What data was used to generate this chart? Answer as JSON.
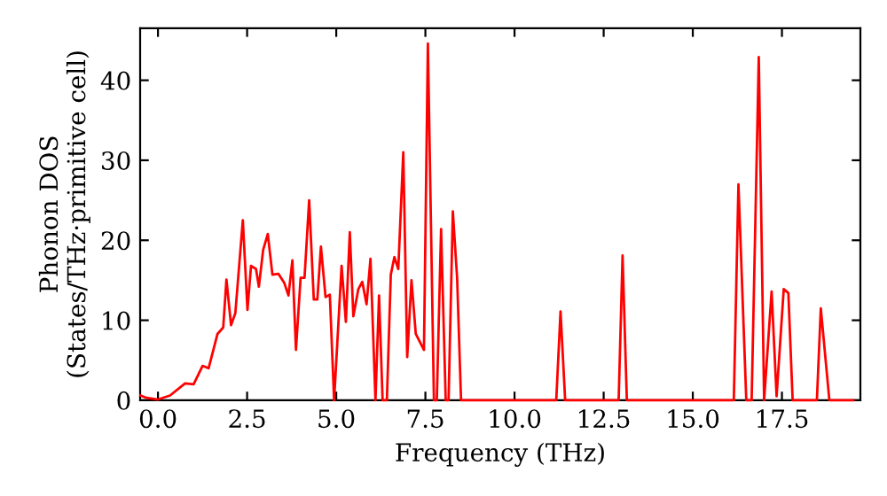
{
  "chart_data": {
    "type": "line",
    "xlabel": "Frequency (THz)",
    "ylabel": "Phonon DOS\n(States/THz·primitive cell)",
    "x": [
      -0.49,
      -0.32,
      0.0,
      0.34,
      0.76,
      1.0,
      1.25,
      1.42,
      1.67,
      1.83,
      1.92,
      2.05,
      2.17,
      2.38,
      2.51,
      2.61,
      2.75,
      2.83,
      2.95,
      3.08,
      3.21,
      3.38,
      3.54,
      3.66,
      3.77,
      3.87,
      4.0,
      4.11,
      4.24,
      4.37,
      4.47,
      4.57,
      4.7,
      4.82,
      4.94,
      5.15,
      5.27,
      5.38,
      5.48,
      5.62,
      5.73,
      5.85,
      5.96,
      6.1,
      6.2,
      6.3,
      6.42,
      6.53,
      6.63,
      6.74,
      6.88,
      6.99,
      7.11,
      7.23,
      7.46,
      7.57,
      7.74,
      7.82,
      7.94,
      8.07,
      8.15,
      8.27,
      8.39,
      8.5,
      11.17,
      11.29,
      11.42,
      12.92,
      13.03,
      13.15,
      16.15,
      16.28,
      16.5,
      16.65,
      16.85,
      17.0,
      17.21,
      17.35,
      17.55,
      17.68,
      17.8,
      18.48,
      18.59,
      18.83,
      19.5
    ],
    "series": [
      {
        "color": "#ff0000",
        "values": [
          0.6,
          0.3,
          0.1,
          0.6,
          2.1,
          2.0,
          4.3,
          4.0,
          8.3,
          9.1,
          15.1,
          9.4,
          10.9,
          22.5,
          11.3,
          16.8,
          16.4,
          14.2,
          18.8,
          20.8,
          15.7,
          15.8,
          14.7,
          13.1,
          17.5,
          6.3,
          15.3,
          15.3,
          25.0,
          12.6,
          12.6,
          19.2,
          12.9,
          13.2,
          0,
          16.8,
          9.8,
          21.0,
          10.5,
          13.9,
          14.8,
          12.0,
          17.7,
          0,
          13.1,
          0,
          0,
          15.7,
          17.9,
          16.4,
          31.0,
          5.4,
          15.0,
          8.3,
          6.3,
          44.6,
          0,
          0,
          21.4,
          0,
          0,
          23.6,
          15.3,
          0,
          0,
          11.1,
          0,
          0,
          18.1,
          0,
          0,
          27.0,
          0,
          0,
          42.9,
          0,
          13.6,
          0.5,
          13.9,
          13.4,
          0,
          0,
          11.5,
          0,
          0
        ]
      }
    ],
    "xlim": [
      -0.5,
      19.7
    ],
    "ylim": [
      0,
      46.5
    ],
    "xticks": [
      {
        "value": 0,
        "label": "0.0"
      },
      {
        "value": 2.5,
        "label": "2.5"
      },
      {
        "value": 5,
        "label": "5.0"
      },
      {
        "value": 7.5,
        "label": "7.5"
      },
      {
        "value": 10,
        "label": "10.0"
      },
      {
        "value": 12.5,
        "label": "12.5"
      },
      {
        "value": 15,
        "label": "15.0"
      },
      {
        "value": 17.5,
        "label": "17.5"
      }
    ],
    "yticks": [
      0,
      10,
      20,
      30,
      40
    ],
    "grid": false,
    "line_style": "solid",
    "marker": "none"
  }
}
